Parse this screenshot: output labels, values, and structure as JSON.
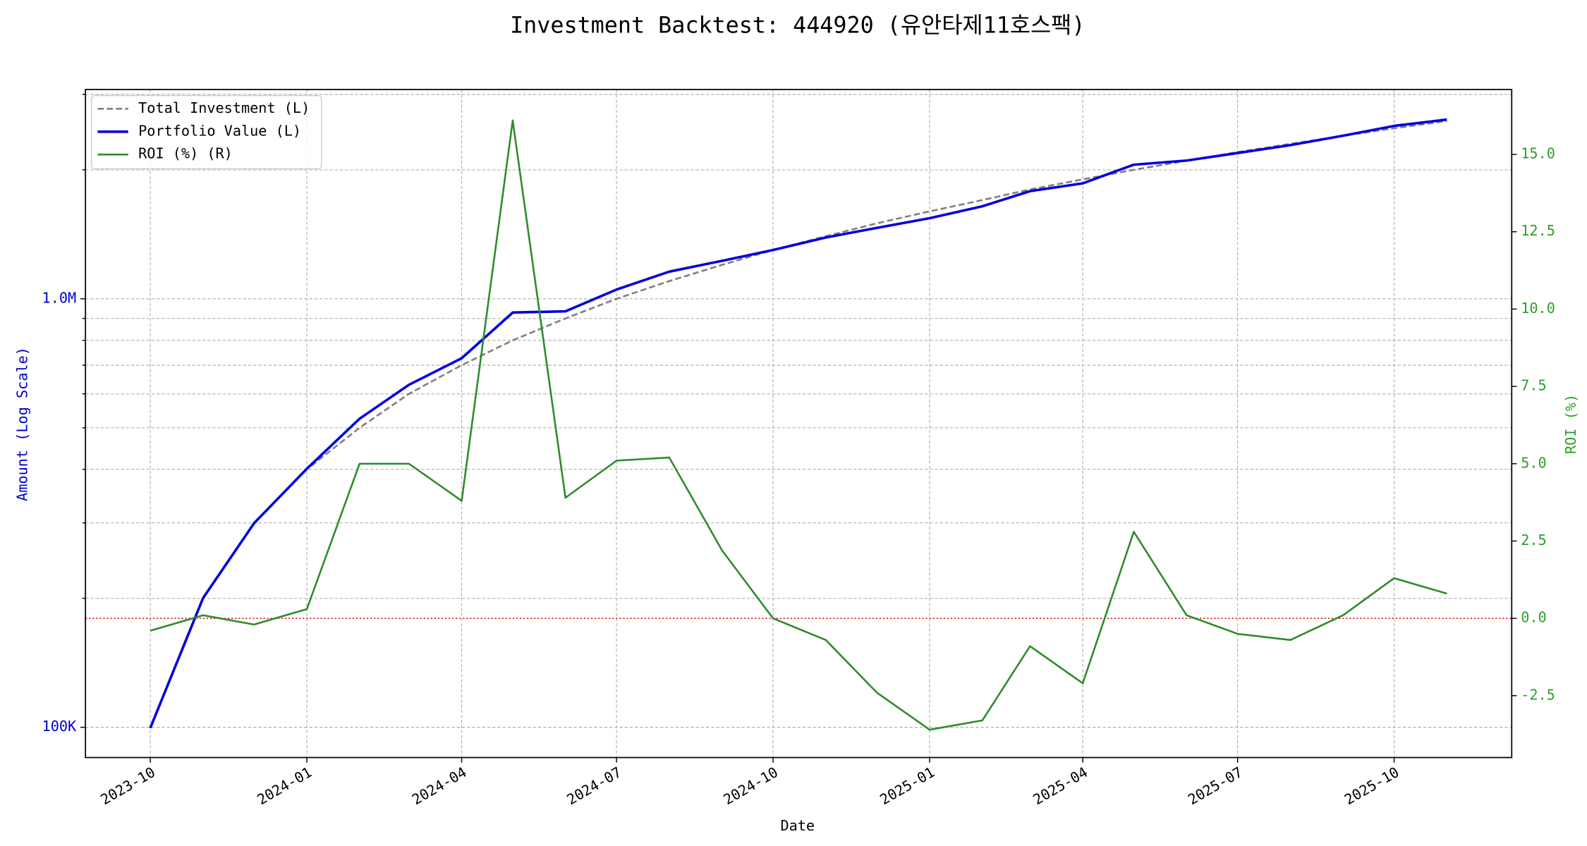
{
  "chart_data": {
    "type": "line",
    "title": "Investment Backtest: 444920 (유안타제11호스팩)",
    "x_label": "Date",
    "y_label": "Amount (Log Scale)",
    "y2_label": "ROI (%)",
    "y_label_color": "#0000cc",
    "y2_label_color": "#2ca02c",
    "log_scale_y": true,
    "grid": true,
    "legend": "upper left",
    "x": [
      "2023-10",
      "2023-11",
      "2023-12",
      "2024-01",
      "2024-02",
      "2024-03",
      "2024-04",
      "2024-05",
      "2024-06",
      "2024-07",
      "2024-08",
      "2024-09",
      "2024-10",
      "2024-11",
      "2024-12",
      "2025-01",
      "2025-02",
      "2025-03",
      "2025-04",
      "2025-05",
      "2025-06",
      "2025-07",
      "2025-08",
      "2025-09",
      "2025-10",
      "2025-11"
    ],
    "xticks": [
      "2023-10",
      "2024-01",
      "2024-04",
      "2024-07",
      "2024-10",
      "2025-01",
      "2025-04",
      "2025-07",
      "2025-10"
    ],
    "ylim": [
      85000,
      3080000
    ],
    "yticks": [
      {
        "value": 100000,
        "label": "100K"
      },
      {
        "value": 1000000,
        "label": "1.0M"
      }
    ],
    "y_minor_ticks": [
      200000,
      300000,
      400000,
      500000,
      600000,
      700000,
      800000,
      900000,
      2000000,
      3000000
    ],
    "y2lim": [
      -4.5,
      17.1
    ],
    "y2ticks": [
      -2.5,
      {
        "value": 0,
        "label": "0.0"
      },
      2.5,
      {
        "value": 5,
        "label": "5.0"
      },
      7.5,
      {
        "value": 10,
        "label": "10.0"
      },
      12.5,
      {
        "value": 15,
        "label": "15.0"
      }
    ],
    "reference_line": {
      "axis": "y2",
      "value": 0,
      "color": "#d62728"
    },
    "series": [
      {
        "name": "Total Investment (L)",
        "color": "#7f7f7f",
        "dash": true,
        "axis": "y",
        "values": [
          100000,
          200000,
          300000,
          400000,
          500000,
          600000,
          700000,
          800000,
          900000,
          1000000,
          1100000,
          1200000,
          1300000,
          1400000,
          1500000,
          1600000,
          1700000,
          1800000,
          1900000,
          2000000,
          2100000,
          2200000,
          2300000,
          2400000,
          2500000,
          2600000
        ]
      },
      {
        "name": "Portfolio Value (L)",
        "color": "#0000dd",
        "width": 2.5,
        "axis": "y",
        "values": [
          99600,
          200200,
          299400,
          401200,
          525000,
          630000,
          726600,
          928800,
          935100,
          1051000,
          1157200,
          1226400,
          1300000,
          1390200,
          1464000,
          1542400,
          1643900,
          1783800,
          1860100,
          2056000,
          2102100,
          2189000,
          2283900,
          2402400,
          2532500,
          2620800
        ]
      },
      {
        "name": "ROI (%) (R)",
        "color": "#2e8b2e",
        "axis": "y2",
        "values": [
          -0.4,
          0.1,
          -0.2,
          0.3,
          5.0,
          5.0,
          3.8,
          16.1,
          3.9,
          5.1,
          5.2,
          2.2,
          0.0,
          -0.7,
          -2.4,
          -3.6,
          -3.3,
          -0.9,
          -2.1,
          2.8,
          0.1,
          -0.5,
          -0.7,
          0.1,
          1.3,
          0.8
        ]
      }
    ]
  }
}
